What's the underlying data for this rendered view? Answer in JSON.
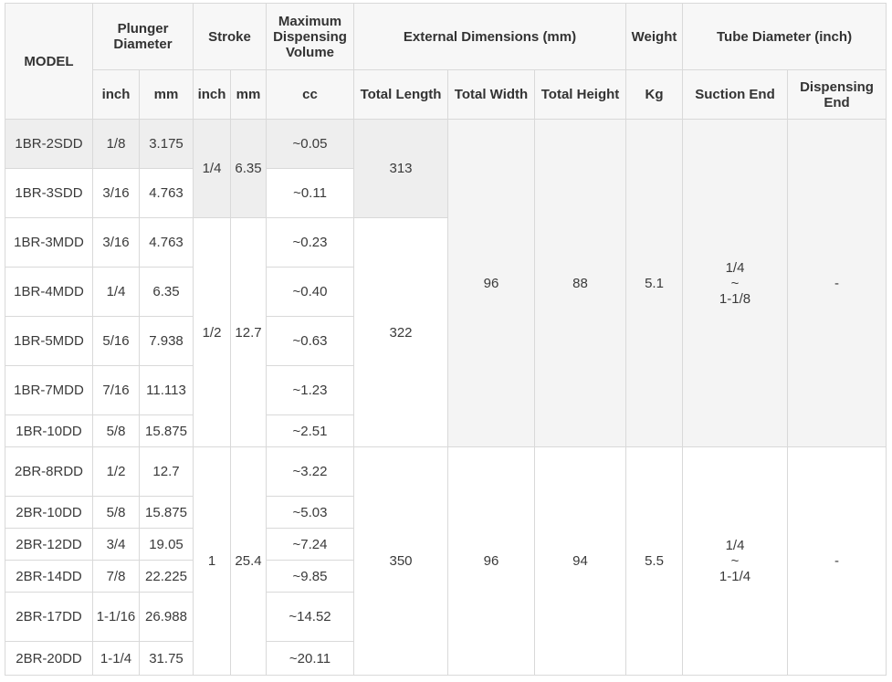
{
  "headers": {
    "model": "MODEL",
    "plunger_diameter": "Plunger Diameter",
    "stroke": "Stroke",
    "max_volume": "Maximum Dispensing Volume",
    "external_dimensions": "External Dimensions (mm)",
    "weight": "Weight",
    "tube_diameter": "Tube Diameter (inch)",
    "sub": {
      "plunger_inch": "inch",
      "plunger_mm": "mm",
      "stroke_inch": "inch",
      "stroke_mm": "mm",
      "volume_cc": "cc",
      "total_length": "Total Length",
      "total_width": "Total Width",
      "total_height": "Total Height",
      "weight_kg": "Kg",
      "suction_end": "Suction End",
      "dispensing_end": "Dispensing End"
    }
  },
  "rows": [
    {
      "model": "1BR-2SDD",
      "inch": "1/8",
      "mm": "3.175",
      "volume": "~0.05"
    },
    {
      "model": "1BR-3SDD",
      "inch": "3/16",
      "mm": "4.763",
      "volume": "~0.11"
    },
    {
      "model": "1BR-3MDD",
      "inch": "3/16",
      "mm": "4.763",
      "volume": "~0.23"
    },
    {
      "model": "1BR-4MDD",
      "inch": "1/4",
      "mm": "6.35",
      "volume": "~0.40"
    },
    {
      "model": "1BR-5MDD",
      "inch": "5/16",
      "mm": "7.938",
      "volume": "~0.63"
    },
    {
      "model": "1BR-7MDD",
      "inch": "7/16",
      "mm": "11.113",
      "volume": "~1.23"
    },
    {
      "model": "1BR-10DD",
      "inch": "5/8",
      "mm": "15.875",
      "volume": "~2.51"
    },
    {
      "model": "2BR-8RDD",
      "inch": "1/2",
      "mm": "12.7",
      "volume": "~3.22"
    },
    {
      "model": "2BR-10DD",
      "inch": "5/8",
      "mm": "15.875",
      "volume": "~5.03"
    },
    {
      "model": "2BR-12DD",
      "inch": "3/4",
      "mm": "19.05",
      "volume": "~7.24"
    },
    {
      "model": "2BR-14DD",
      "inch": "7/8",
      "mm": "22.225",
      "volume": "~9.85"
    },
    {
      "model": "2BR-17DD",
      "inch": "1-1/16",
      "mm": "26.988",
      "volume": "~14.52"
    },
    {
      "model": "2BR-20DD",
      "inch": "1-1/4",
      "mm": "31.75",
      "volume": "~20.11"
    }
  ],
  "stroke_groups": [
    {
      "inch": "1/4",
      "mm": "6.35"
    },
    {
      "inch": "1/2",
      "mm": "12.7"
    },
    {
      "inch": "1",
      "mm": "25.4"
    }
  ],
  "length_groups": [
    "313",
    "322",
    "350"
  ],
  "series_groups": [
    {
      "width": "96",
      "height": "88",
      "weight": "5.1",
      "suction": [
        "1/4",
        "~",
        "1-1/8"
      ],
      "dispensing": "-"
    },
    {
      "width": "96",
      "height": "94",
      "weight": "5.5",
      "suction": [
        "1/4",
        "~",
        "1-1/4"
      ],
      "dispensing": "-"
    }
  ]
}
